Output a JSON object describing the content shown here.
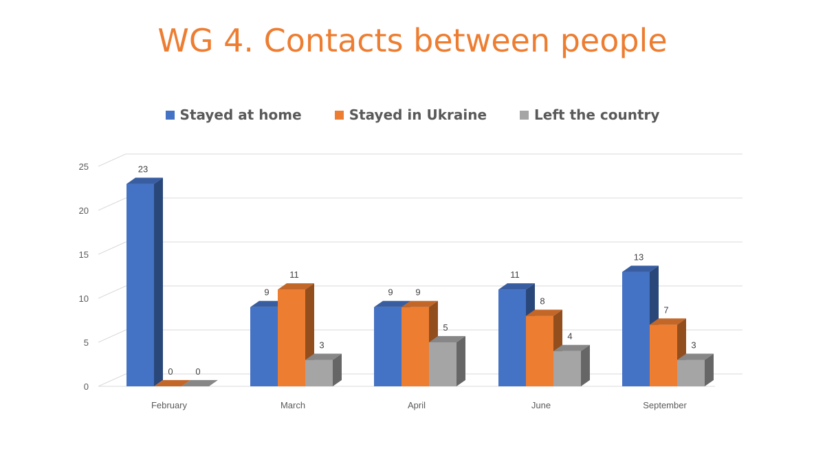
{
  "slide": {
    "title": "WG 4. Contacts between people"
  },
  "chart_data": {
    "type": "bar",
    "categories": [
      "February",
      "March",
      "April",
      "June",
      "September"
    ],
    "series": [
      {
        "name": "Stayed at home",
        "values": [
          23,
          9,
          9,
          11,
          13
        ],
        "color": "#4472C4"
      },
      {
        "name": "Stayed in Ukraine",
        "values": [
          0,
          11,
          9,
          8,
          7
        ],
        "color": "#ED7D31"
      },
      {
        "name": "Left the country",
        "values": [
          0,
          3,
          5,
          4,
          3
        ],
        "color": "#A5A5A5"
      }
    ],
    "ylim": [
      0,
      25
    ],
    "yticks": [
      0,
      5,
      10,
      15,
      20,
      25
    ],
    "grid": true,
    "legend": "top",
    "style": "3d-clustered-column",
    "data_labels": true
  }
}
